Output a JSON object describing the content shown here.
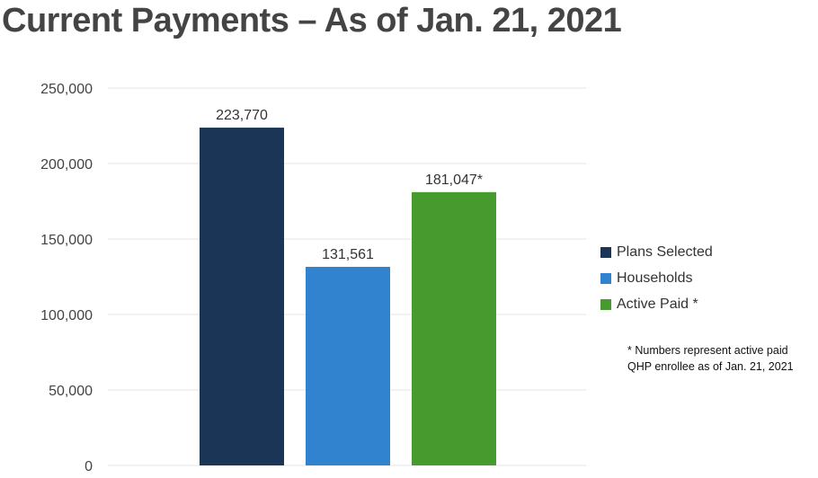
{
  "chart_data": {
    "type": "bar",
    "title": "Current Payments – As of Jan. 21, 2021",
    "categories": [
      "Plans Selected",
      "Households",
      "Active Paid *"
    ],
    "values": [
      223770,
      131561,
      181047
    ],
    "data_labels": [
      "223,770",
      "131,561",
      "181,047*"
    ],
    "colors": [
      "#1b3557",
      "#3183d0",
      "#479b2e"
    ],
    "ylim": [
      0,
      250000
    ],
    "yticks": [
      "0",
      "50,000",
      "100,000",
      "150,000",
      "200,000",
      "250,000"
    ],
    "grid": true,
    "legend": "right",
    "xlabel": "",
    "ylabel": ""
  },
  "footnote": [
    "* Numbers represent active paid",
    "QHP enrollee as of Jan. 21, 2021"
  ]
}
